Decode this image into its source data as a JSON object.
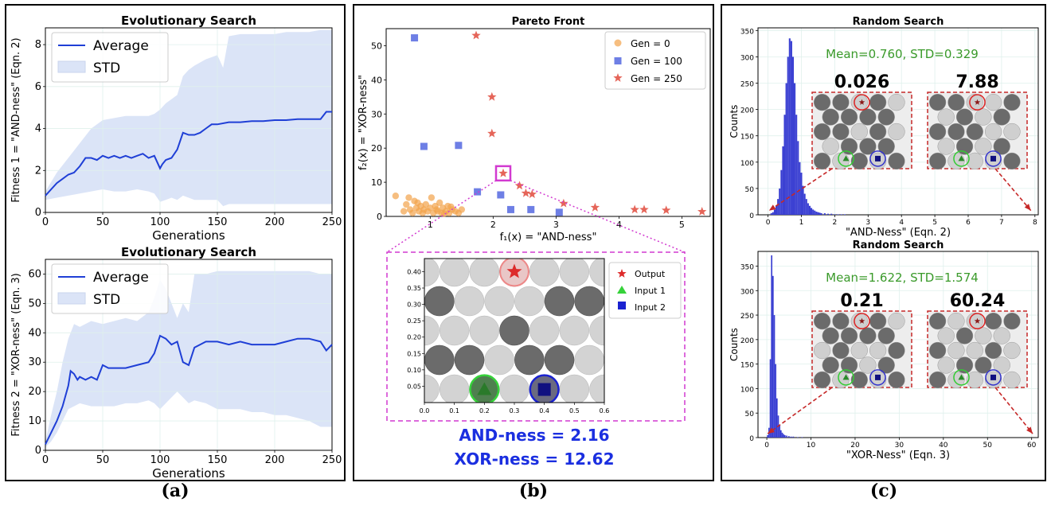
{
  "panel_labels": [
    "(a)",
    "(b)",
    "(c)"
  ],
  "chart_data": [
    {
      "id": "a1",
      "type": "line",
      "title": "Evolutionary Search",
      "xlabel": "Generations",
      "ylabel": "Fitness 1 = \"AND-ness\" (Eqn. 2)",
      "xlim": [
        0,
        250
      ],
      "ylim": [
        0,
        8.8
      ],
      "xticks": [
        0,
        50,
        100,
        150,
        200,
        250
      ],
      "yticks": [
        0,
        2,
        4,
        6,
        8
      ],
      "legend": {
        "placement": "top-left",
        "entries": [
          "Average",
          "STD"
        ]
      },
      "colors": {
        "line": "#1f3fd6",
        "band": "#dbe4f7"
      },
      "series": [
        {
          "name": "Average",
          "x": [
            0,
            5,
            10,
            15,
            20,
            25,
            30,
            35,
            40,
            45,
            50,
            55,
            60,
            65,
            70,
            75,
            80,
            85,
            90,
            95,
            100,
            102,
            105,
            110,
            115,
            120,
            125,
            130,
            135,
            140,
            145,
            150,
            160,
            170,
            180,
            190,
            200,
            210,
            220,
            230,
            240,
            245,
            250
          ],
          "values": [
            0.8,
            1.1,
            1.4,
            1.6,
            1.8,
            1.9,
            2.2,
            2.6,
            2.6,
            2.5,
            2.7,
            2.6,
            2.7,
            2.6,
            2.7,
            2.6,
            2.7,
            2.8,
            2.6,
            2.7,
            2.1,
            2.3,
            2.5,
            2.6,
            3.0,
            3.8,
            3.7,
            3.7,
            3.8,
            4.0,
            4.2,
            4.2,
            4.3,
            4.3,
            4.35,
            4.35,
            4.4,
            4.4,
            4.45,
            4.45,
            4.45,
            4.8,
            4.8
          ]
        },
        {
          "name": "STD",
          "x": [
            0,
            10,
            20,
            30,
            40,
            50,
            60,
            70,
            80,
            90,
            95,
            100,
            105,
            110,
            115,
            120,
            125,
            130,
            140,
            150,
            155,
            160,
            170,
            180,
            190,
            200,
            210,
            220,
            230,
            240,
            250
          ],
          "upper": [
            1.0,
            1.9,
            2.6,
            3.3,
            4.0,
            4.4,
            4.5,
            4.6,
            4.6,
            4.6,
            4.7,
            4.9,
            5.2,
            5.4,
            5.6,
            6.5,
            6.8,
            7.0,
            7.3,
            7.5,
            6.9,
            8.4,
            8.5,
            8.5,
            8.5,
            8.5,
            8.6,
            8.6,
            8.6,
            8.7,
            8.7
          ],
          "lower": [
            0.6,
            0.7,
            0.8,
            0.9,
            1.0,
            1.1,
            1.0,
            1.0,
            1.1,
            1.0,
            0.9,
            0.5,
            0.6,
            0.7,
            0.6,
            0.8,
            0.7,
            0.6,
            0.6,
            0.6,
            0.3,
            0.4,
            0.4,
            0.4,
            0.4,
            0.4,
            0.4,
            0.4,
            0.4,
            0.4,
            0.4
          ]
        }
      ]
    },
    {
      "id": "a2",
      "type": "line",
      "title": "Evolutionary Search",
      "xlabel": "Generations",
      "ylabel": "Fitness 2 = \"XOR-ness\" (Eqn. 3)",
      "xlim": [
        0,
        250
      ],
      "ylim": [
        0,
        65
      ],
      "xticks": [
        0,
        50,
        100,
        150,
        200,
        250
      ],
      "yticks": [
        0,
        10,
        20,
        30,
        40,
        50,
        60
      ],
      "legend": {
        "placement": "top-left",
        "entries": [
          "Average",
          "STD"
        ]
      },
      "colors": {
        "line": "#1f3fd6",
        "band": "#dbe4f7"
      },
      "series": [
        {
          "name": "Average",
          "x": [
            0,
            5,
            10,
            15,
            20,
            22,
            25,
            28,
            30,
            35,
            40,
            45,
            50,
            55,
            60,
            70,
            80,
            90,
            95,
            100,
            105,
            110,
            115,
            120,
            125,
            130,
            135,
            140,
            150,
            160,
            170,
            180,
            190,
            200,
            210,
            220,
            230,
            240,
            245,
            250
          ],
          "values": [
            2,
            6,
            10,
            15,
            22,
            27,
            26,
            24,
            25,
            24,
            25,
            24,
            29,
            28,
            28,
            28,
            29,
            30,
            33,
            39,
            38,
            36,
            37,
            30,
            29,
            35,
            36,
            37,
            37,
            36,
            37,
            36,
            36,
            36,
            37,
            38,
            38,
            37,
            34,
            36
          ]
        },
        {
          "name": "STD",
          "x": [
            0,
            5,
            10,
            15,
            20,
            25,
            30,
            40,
            50,
            60,
            70,
            80,
            90,
            95,
            100,
            105,
            110,
            115,
            120,
            125,
            130,
            140,
            150,
            160,
            170,
            180,
            190,
            200,
            210,
            220,
            230,
            240,
            250
          ],
          "upper": [
            3,
            12,
            20,
            30,
            38,
            43,
            42,
            44,
            43,
            44,
            45,
            44,
            47,
            52,
            58,
            55,
            50,
            45,
            50,
            47,
            60,
            60,
            61,
            61,
            61,
            61,
            61,
            61,
            61,
            61,
            61,
            60,
            60
          ],
          "lower": [
            1,
            3,
            6,
            10,
            14,
            15,
            16,
            15,
            15,
            15,
            16,
            16,
            17,
            16,
            14,
            16,
            18,
            20,
            18,
            16,
            17,
            16,
            14,
            14,
            14,
            13,
            13,
            12,
            12,
            11,
            10,
            8,
            8
          ]
        }
      ]
    },
    {
      "id": "b",
      "type": "scatter",
      "title": "Pareto Front",
      "xlabel": "f₁(x) = \"AND-ness\"",
      "ylabel": "f₂(x) = \"XOR-ness\"",
      "xlim": [
        0.3,
        5.45
      ],
      "ylim": [
        0,
        55
      ],
      "xticks": [
        1,
        2,
        3,
        4,
        5
      ],
      "yticks": [
        0,
        10,
        20,
        30,
        40,
        50
      ],
      "legend": {
        "placement": "top-right",
        "entries": [
          "Gen = 0",
          "Gen = 100",
          "Gen = 250"
        ]
      },
      "colors": {
        "gen0": "#f2a24a",
        "gen100": "#5568e0",
        "gen250": "#e04a3c",
        "highlight": "#d23ad0"
      },
      "series": [
        {
          "name": "Gen = 0",
          "marker": "circle",
          "points": [
            [
              0.45,
              6
            ],
            [
              0.58,
              1.5
            ],
            [
              0.62,
              3.5
            ],
            [
              0.68,
              2
            ],
            [
              0.72,
              1
            ],
            [
              0.75,
              4.5
            ],
            [
              0.78,
              2.5
            ],
            [
              0.82,
              1.5
            ],
            [
              0.85,
              3
            ],
            [
              0.88,
              1
            ],
            [
              0.9,
              2
            ],
            [
              0.93,
              3.5
            ],
            [
              0.96,
              1.5
            ],
            [
              1.0,
              2.5
            ],
            [
              1.02,
              5.5
            ],
            [
              1.05,
              1
            ],
            [
              1.08,
              3
            ],
            [
              1.1,
              2
            ],
            [
              1.12,
              1.5
            ],
            [
              1.15,
              4
            ],
            [
              1.18,
              1
            ],
            [
              1.2,
              2.5
            ],
            [
              1.25,
              1.5
            ],
            [
              1.28,
              3
            ],
            [
              1.3,
              1
            ],
            [
              1.35,
              2
            ],
            [
              1.4,
              1.5
            ],
            [
              1.45,
              1
            ],
            [
              1.5,
              2
            ],
            [
              0.66,
              5.5
            ],
            [
              0.8,
              4
            ],
            [
              1.22,
              0.8
            ],
            [
              1.33,
              2.8
            ]
          ]
        },
        {
          "name": "Gen = 100",
          "marker": "square",
          "points": [
            [
              0.75,
              52.3
            ],
            [
              0.9,
              20.5
            ],
            [
              1.45,
              20.8
            ],
            [
              1.75,
              7.2
            ],
            [
              2.12,
              6.3
            ],
            [
              2.28,
              2
            ],
            [
              2.6,
              2
            ],
            [
              3.05,
              1.2
            ]
          ]
        },
        {
          "name": "Gen = 250",
          "marker": "star",
          "points": [
            [
              1.73,
              53
            ],
            [
              1.98,
              35
            ],
            [
              1.98,
              24.3
            ],
            [
              2.16,
              12.62
            ],
            [
              2.42,
              9
            ],
            [
              2.52,
              6.8
            ],
            [
              2.62,
              6.5
            ],
            [
              3.12,
              3.8
            ],
            [
              3.62,
              2.6
            ],
            [
              4.25,
              2
            ],
            [
              4.4,
              2
            ],
            [
              4.75,
              1.8
            ],
            [
              5.32,
              1.4
            ]
          ]
        }
      ]
    },
    {
      "id": "c1",
      "type": "bar",
      "title": "Random Search",
      "xlabel": "\"AND-Ness\" (Eqn. 2)",
      "ylabel": "Counts",
      "annotation": "Mean=0.760, STD=0.329",
      "xlim": [
        -0.3,
        8.1
      ],
      "ylim": [
        0,
        355
      ],
      "xticks": [
        0,
        1,
        2,
        3,
        4,
        5,
        6,
        7,
        8
      ],
      "yticks": [
        0,
        50,
        100,
        150,
        200,
        250,
        300,
        350
      ],
      "colors": {
        "bars": "#3a3fd2",
        "annotation": "#3a9a2a"
      },
      "x": [
        0.1,
        0.15,
        0.2,
        0.25,
        0.3,
        0.35,
        0.4,
        0.45,
        0.5,
        0.55,
        0.6,
        0.65,
        0.7,
        0.75,
        0.8,
        0.85,
        0.9,
        0.95,
        1.0,
        1.05,
        1.1,
        1.15,
        1.2,
        1.25,
        1.3,
        1.35,
        1.4,
        1.45,
        1.5,
        1.55,
        1.6,
        1.7,
        1.8,
        1.9,
        2.0,
        2.1,
        2.2,
        2.3
      ],
      "values": [
        3,
        5,
        10,
        18,
        30,
        50,
        85,
        130,
        190,
        250,
        300,
        335,
        330,
        300,
        250,
        190,
        140,
        100,
        80,
        55,
        40,
        30,
        22,
        17,
        13,
        10,
        8,
        6,
        5,
        4,
        3,
        3,
        2,
        2,
        1,
        1,
        1,
        1
      ]
    },
    {
      "id": "c2",
      "type": "bar",
      "title": "Random Search",
      "xlabel": "\"XOR-Ness\" (Eqn. 3)",
      "ylabel": "Counts",
      "annotation": "Mean=1.622, STD=1.574",
      "xlim": [
        -2,
        61.5
      ],
      "ylim": [
        0,
        380
      ],
      "xticks": [
        0,
        10,
        20,
        30,
        40,
        50,
        60
      ],
      "yticks": [
        0,
        50,
        100,
        150,
        200,
        250,
        300,
        350
      ],
      "colors": {
        "bars": "#3a3fd2",
        "annotation": "#3a9a2a"
      },
      "x": [
        0.2,
        0.5,
        0.8,
        1.1,
        1.4,
        1.7,
        2.0,
        2.3,
        2.6,
        2.9,
        3.2,
        3.5,
        3.8,
        4.1,
        4.5,
        5,
        5.5,
        6,
        7,
        8
      ],
      "values": [
        5,
        20,
        160,
        372,
        330,
        250,
        150,
        80,
        45,
        25,
        15,
        10,
        7,
        5,
        4,
        3,
        2,
        2,
        1,
        1
      ]
    }
  ],
  "inset_b": {
    "xlim": [
      0,
      0.6
    ],
    "ylim": [
      0,
      0.44
    ],
    "xticks": [
      "0.0",
      "0.1",
      "0.2",
      "0.3",
      "0.4",
      "0.5",
      "0.6"
    ],
    "yticks": [
      "0.05",
      "0.10",
      "0.15",
      "0.20",
      "0.25",
      "0.30",
      "0.35",
      "0.40"
    ],
    "legend": [
      "Output",
      "Input 1",
      "Input 2"
    ],
    "colors": {
      "output": "#dd2b2b",
      "input1": "#36d23a",
      "input2": "#1a22d0",
      "dark": "#6b6b6b",
      "light": "#d3d3d3",
      "border": "#d23ad0"
    },
    "rows": [
      [
        0,
        0,
        0,
        0,
        0,
        0,
        0
      ],
      [
        1,
        0,
        0,
        0,
        1,
        0,
        1
      ],
      [
        0,
        0,
        0,
        1,
        0,
        0,
        0
      ],
      [
        1,
        1,
        0,
        1,
        1,
        0,
        0
      ],
      [
        0,
        0,
        0,
        0,
        0,
        0,
        0
      ]
    ],
    "caption_and": "AND-ness = 2.16",
    "caption_xor": "XOR-ness = 12.62"
  },
  "insets_c": [
    {
      "value": "0.026",
      "rows": [
        [
          1,
          1,
          0,
          1,
          0
        ],
        [
          1,
          1,
          1,
          1,
          0
        ],
        [
          1,
          1,
          0,
          1,
          0
        ],
        [
          0,
          1,
          1,
          1,
          0
        ],
        [
          1,
          0,
          1,
          0,
          1
        ]
      ]
    },
    {
      "value": "7.88",
      "rows": [
        [
          1,
          1,
          0,
          0,
          1
        ],
        [
          0,
          1,
          0,
          1,
          0
        ],
        [
          1,
          1,
          1,
          0,
          0
        ],
        [
          0,
          1,
          0,
          1,
          0
        ],
        [
          1,
          0,
          0,
          0,
          1
        ]
      ]
    },
    {
      "value": "0.21",
      "rows": [
        [
          1,
          1,
          0,
          1,
          0
        ],
        [
          1,
          1,
          1,
          1,
          0
        ],
        [
          0,
          1,
          0,
          0,
          1
        ],
        [
          1,
          1,
          0,
          1,
          0
        ],
        [
          1,
          0,
          1,
          0,
          1
        ]
      ]
    },
    {
      "value": "60.24",
      "rows": [
        [
          1,
          0,
          0,
          1,
          1
        ],
        [
          0,
          1,
          0,
          0,
          0
        ],
        [
          1,
          0,
          0,
          1,
          0
        ],
        [
          0,
          1,
          1,
          0,
          0
        ],
        [
          1,
          0,
          0,
          0,
          0
        ]
      ]
    }
  ]
}
